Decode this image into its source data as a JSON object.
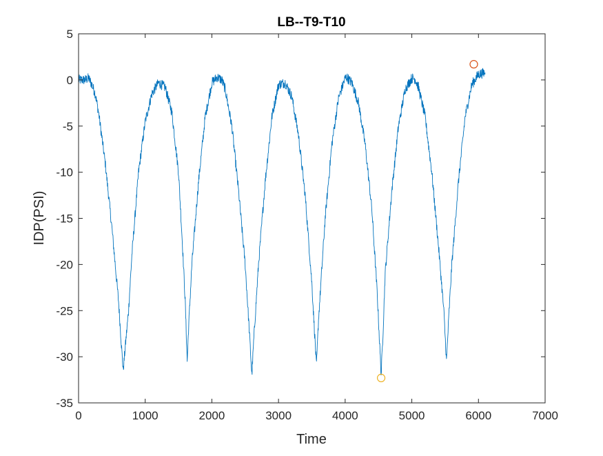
{
  "chart_data": {
    "type": "line",
    "title": "LB--T9-T10",
    "xlabel": "Time",
    "ylabel": "IDP(PSI)",
    "xlim": [
      0,
      7000
    ],
    "ylim": [
      -35,
      5
    ],
    "xticks": [
      0,
      1000,
      2000,
      3000,
      4000,
      5000,
      6000,
      7000
    ],
    "yticks": [
      5,
      0,
      -5,
      -10,
      -15,
      -20,
      -25,
      -30,
      -35
    ],
    "grid": false,
    "legend": "none",
    "series": [
      {
        "color": "#0072BD",
        "noise_amplitude": 0.55,
        "x": [
          0,
          100,
          150,
          200,
          250,
          300,
          400,
          500,
          600,
          650,
          670,
          700,
          750,
          800,
          900,
          1000,
          1100,
          1200,
          1300,
          1400,
          1500,
          1560,
          1600,
          1630,
          1650,
          1700,
          1800,
          1900,
          2000,
          2080,
          2150,
          2200,
          2300,
          2400,
          2500,
          2560,
          2600,
          2630,
          2700,
          2800,
          2900,
          3000,
          3100,
          3200,
          3300,
          3400,
          3500,
          3530,
          3570,
          3600,
          3700,
          3800,
          3900,
          4000,
          4020,
          4100,
          4200,
          4300,
          4400,
          4480,
          4520,
          4540,
          4570,
          4600,
          4700,
          4800,
          4900,
          5000,
          5050,
          5100,
          5200,
          5300,
          5400,
          5480,
          5520,
          5560,
          5600,
          5700,
          5800,
          5900,
          6000,
          6100
        ],
        "y": [
          0,
          0,
          0.2,
          -0.5,
          -1.5,
          -3.5,
          -9,
          -16,
          -24,
          -29.5,
          -31.5,
          -29,
          -25,
          -19,
          -10,
          -4.5,
          -1.5,
          -0.3,
          -0.8,
          -3.5,
          -10,
          -18,
          -24,
          -30.5,
          -27,
          -20,
          -11,
          -4,
          -0.3,
          0.3,
          0,
          -1,
          -5,
          -12,
          -20,
          -27,
          -32,
          -28,
          -20,
          -11,
          -4,
          -0.5,
          -0.3,
          -1.8,
          -6,
          -12.5,
          -22,
          -26,
          -31,
          -26,
          -15,
          -7,
          -2,
          0.2,
          0.3,
          -0.3,
          -2.5,
          -7,
          -14,
          -23,
          -29,
          -32,
          -27,
          -21,
          -12,
          -5,
          -1,
          0.2,
          0.1,
          -0.8,
          -4,
          -10,
          -18,
          -25,
          -30.5,
          -25,
          -20,
          -11,
          -4,
          -0.5,
          0.6,
          0.8
        ]
      }
    ],
    "markers": [
      {
        "x": 5930,
        "y": 1.7,
        "shape": "circle",
        "color": "#D95319"
      },
      {
        "x": 4540,
        "y": -32.3,
        "shape": "circle",
        "color": "#EDB120"
      }
    ]
  }
}
